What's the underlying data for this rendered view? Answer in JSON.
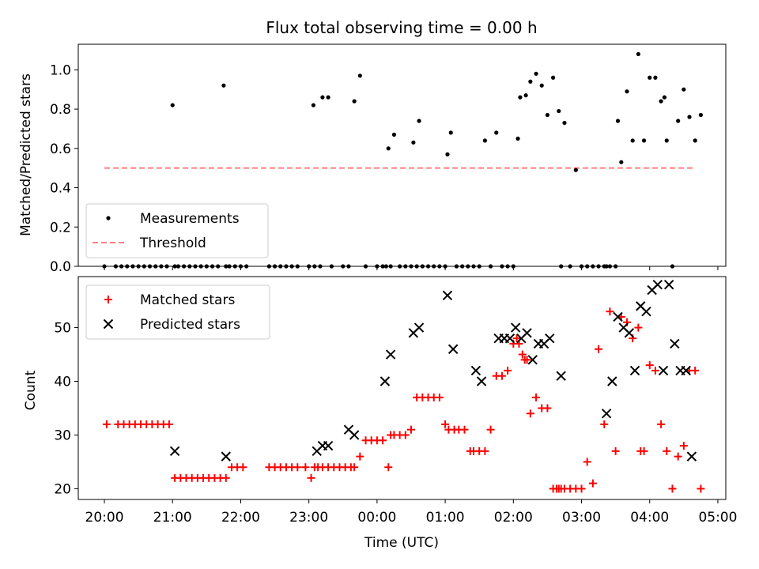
{
  "chart_data": [
    {
      "type": "scatter",
      "title": "Flux total observing time = 0.00 h",
      "xlabel": "",
      "ylabel": "Matched/Predicted stars",
      "xlim": [
        "19:37",
        "05:07"
      ],
      "ylim": [
        0,
        1.13
      ],
      "yticks": [
        0.0,
        0.2,
        0.4,
        0.6,
        0.8,
        1.0
      ],
      "xticks": [
        "20:00",
        "21:00",
        "22:00",
        "23:00",
        "00:00",
        "01:00",
        "02:00",
        "03:00",
        "04:00",
        "05:00"
      ],
      "legend": {
        "placement": "lower-left",
        "entries": [
          "Measurements",
          "Threshold"
        ]
      },
      "threshold": {
        "name": "Threshold",
        "value": 0.5,
        "color": "#ff7f7f",
        "x_start": "20:00",
        "x_end": "04:40"
      },
      "series": [
        {
          "name": "Measurements",
          "color": "#000000",
          "marker": "dot",
          "x": [
            "20:00",
            "20:10",
            "20:15",
            "20:20",
            "20:25",
            "20:30",
            "20:35",
            "20:40",
            "20:45",
            "20:50",
            "20:55",
            "21:00",
            "21:02",
            "21:05",
            "21:10",
            "21:15",
            "21:20",
            "21:25",
            "21:30",
            "21:35",
            "21:40",
            "21:45",
            "21:47",
            "21:50",
            "21:55",
            "22:00",
            "22:05",
            "22:25",
            "22:30",
            "22:35",
            "22:40",
            "22:45",
            "22:50",
            "23:00",
            "23:04",
            "23:05",
            "23:10",
            "23:12",
            "23:17",
            "23:20",
            "23:30",
            "23:35",
            "23:40",
            "23:45",
            "23:50",
            "00:00",
            "00:05",
            "00:08",
            "00:10",
            "00:12",
            "00:15",
            "00:20",
            "00:25",
            "00:30",
            "00:32",
            "00:35",
            "00:37",
            "00:40",
            "00:45",
            "00:50",
            "00:55",
            "01:00",
            "01:02",
            "01:05",
            "01:10",
            "01:15",
            "01:20",
            "01:25",
            "01:30",
            "01:35",
            "01:40",
            "01:45",
            "01:50",
            "01:55",
            "02:00",
            "02:04",
            "02:06",
            "02:11",
            "02:15",
            "02:20",
            "02:25",
            "02:30",
            "02:35",
            "02:40",
            "02:42",
            "02:45",
            "02:50",
            "02:55",
            "03:00",
            "03:05",
            "03:10",
            "03:15",
            "03:20",
            "03:22",
            "03:25",
            "03:30",
            "03:32",
            "03:35",
            "03:40",
            "03:45",
            "03:50",
            "03:55",
            "04:00",
            "04:05",
            "04:10",
            "04:13",
            "04:15",
            "04:20",
            "04:25",
            "04:30",
            "04:35",
            "04:40",
            "04:45"
          ],
          "y": [
            0.0,
            0.0,
            0.0,
            0.0,
            0.0,
            0.0,
            0.0,
            0.0,
            0.0,
            0.0,
            0.0,
            0.82,
            0.0,
            0.0,
            0.0,
            0.0,
            0.0,
            0.0,
            0.0,
            0.0,
            0.0,
            0.92,
            0.0,
            0.0,
            0.0,
            0.0,
            0.0,
            0.0,
            0.0,
            0.0,
            0.0,
            0.0,
            0.0,
            0.0,
            0.82,
            0.0,
            0.0,
            0.86,
            0.86,
            0.0,
            0.0,
            0.0,
            0.84,
            0.97,
            0.0,
            0.0,
            0.0,
            0.0,
            0.6,
            0.0,
            0.67,
            0.0,
            0.0,
            0.0,
            0.63,
            0.0,
            0.74,
            0.0,
            0.0,
            0.0,
            0.0,
            0.0,
            0.57,
            0.68,
            0.0,
            0.0,
            0.0,
            0.0,
            0.0,
            0.64,
            0.0,
            0.68,
            0.0,
            0.0,
            0.0,
            0.65,
            0.86,
            0.87,
            0.94,
            0.98,
            0.92,
            0.77,
            0.96,
            0.79,
            0.0,
            0.73,
            0.0,
            0.49,
            0.0,
            0.0,
            0.0,
            0.0,
            0.0,
            0.0,
            0.0,
            0.0,
            0.74,
            0.53,
            0.89,
            0.64,
            1.08,
            0.64,
            0.96,
            0.96,
            0.84,
            0.86,
            0.64,
            0.0,
            0.74,
            0.9,
            0.76,
            0.64,
            0.77
          ]
        }
      ]
    },
    {
      "type": "scatter",
      "title": "",
      "xlabel": "Time (UTC)",
      "ylabel": "Count",
      "xlim": [
        "19:37",
        "05:07"
      ],
      "ylim": [
        18,
        59.5
      ],
      "yticks": [
        20,
        30,
        40,
        50
      ],
      "xticks": [
        "20:00",
        "21:00",
        "22:00",
        "23:00",
        "00:00",
        "01:00",
        "02:00",
        "03:00",
        "04:00",
        "05:00"
      ],
      "legend": {
        "placement": "upper-left",
        "entries": [
          "Matched stars",
          "Predicted stars"
        ]
      },
      "series": [
        {
          "name": "Matched stars",
          "color": "#ff0000",
          "marker": "plus",
          "x": [
            "20:02",
            "20:12",
            "20:17",
            "20:22",
            "20:27",
            "20:32",
            "20:37",
            "20:42",
            "20:47",
            "20:52",
            "20:57",
            "21:02",
            "21:07",
            "21:12",
            "21:17",
            "21:22",
            "21:27",
            "21:32",
            "21:37",
            "21:42",
            "21:47",
            "21:52",
            "21:57",
            "22:02",
            "22:25",
            "22:30",
            "22:35",
            "22:40",
            "22:45",
            "22:50",
            "22:57",
            "23:02",
            "23:05",
            "23:08",
            "23:12",
            "23:17",
            "23:22",
            "23:27",
            "23:32",
            "23:37",
            "23:40",
            "23:45",
            "23:50",
            "23:55",
            "00:00",
            "00:05",
            "00:10",
            "00:12",
            "00:15",
            "00:20",
            "00:25",
            "00:30",
            "00:35",
            "00:40",
            "00:45",
            "00:50",
            "00:55",
            "01:00",
            "01:03",
            "01:08",
            "01:12",
            "01:17",
            "01:22",
            "01:25",
            "01:30",
            "01:35",
            "01:40",
            "01:45",
            "01:50",
            "01:55",
            "02:00",
            "02:03",
            "02:05",
            "02:08",
            "02:10",
            "02:12",
            "02:15",
            "02:20",
            "02:25",
            "02:30",
            "02:35",
            "02:38",
            "02:40",
            "02:42",
            "02:45",
            "02:50",
            "02:55",
            "03:00",
            "03:05",
            "03:10",
            "03:15",
            "03:20",
            "03:25",
            "03:30",
            "03:35",
            "03:40",
            "03:45",
            "03:50",
            "03:52",
            "03:55",
            "04:00",
            "04:05",
            "04:10",
            "04:15",
            "04:20",
            "04:25",
            "04:30",
            "04:35",
            "04:40",
            "04:45"
          ],
          "y": [
            32,
            32,
            32,
            32,
            32,
            32,
            32,
            32,
            32,
            32,
            32,
            22,
            22,
            22,
            22,
            22,
            22,
            22,
            22,
            22,
            22,
            24,
            24,
            24,
            24,
            24,
            24,
            24,
            24,
            24,
            24,
            22,
            24,
            24,
            24,
            24,
            24,
            24,
            24,
            24,
            24,
            26,
            29,
            29,
            29,
            29,
            24,
            30,
            30,
            30,
            30,
            31,
            37,
            37,
            37,
            37,
            37,
            32,
            31,
            31,
            31,
            31,
            27,
            27,
            27,
            27,
            31,
            41,
            41,
            42,
            47,
            48,
            47,
            45,
            44,
            44,
            34,
            37,
            35,
            35,
            20,
            20,
            20,
            20,
            20,
            20,
            20,
            20,
            25,
            21,
            46,
            32,
            53,
            27,
            52,
            51,
            48,
            50,
            27,
            27,
            43,
            42,
            32,
            27,
            20,
            26,
            28,
            42,
            42,
            20
          ]
        },
        {
          "name": "Predicted stars",
          "color": "#000000",
          "marker": "x",
          "x": [
            "21:02",
            "21:47",
            "23:07",
            "23:12",
            "23:17",
            "23:35",
            "23:40",
            "00:07",
            "00:12",
            "00:32",
            "00:37",
            "01:02",
            "01:07",
            "01:27",
            "01:32",
            "01:47",
            "01:52",
            "01:57",
            "02:02",
            "02:07",
            "02:12",
            "02:17",
            "02:22",
            "02:27",
            "02:32",
            "02:42",
            "03:22",
            "03:27",
            "03:32",
            "03:37",
            "03:42",
            "03:47",
            "03:52",
            "03:57",
            "04:02",
            "04:07",
            "04:12",
            "04:17",
            "04:22",
            "04:27",
            "04:32",
            "04:37"
          ],
          "y": [
            27,
            26,
            27,
            28,
            28,
            31,
            30,
            40,
            45,
            49,
            50,
            56,
            46,
            42,
            40,
            48,
            48,
            48,
            50,
            48,
            49,
            44,
            47,
            47,
            48,
            41,
            34,
            40,
            52,
            50,
            49,
            42,
            54,
            53,
            57,
            58,
            42,
            58,
            47,
            42,
            42,
            26
          ]
        }
      ]
    }
  ]
}
